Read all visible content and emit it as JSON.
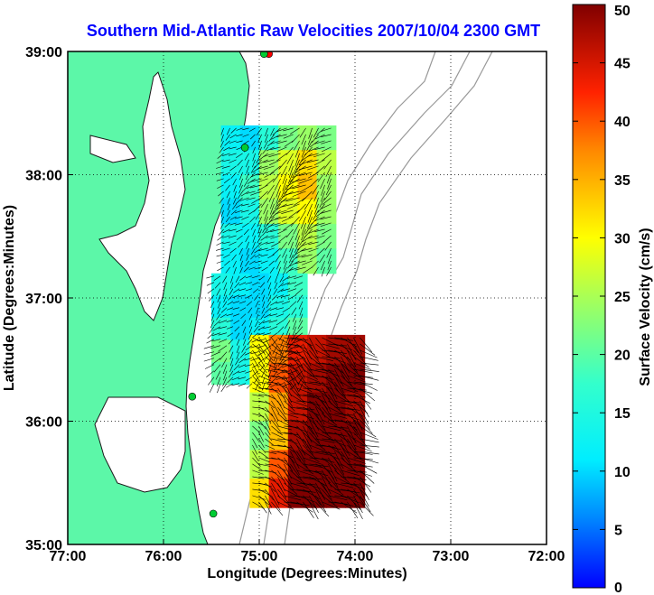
{
  "chart_data": {
    "type": "heatmap",
    "title": "Southern Mid-Atlantic Raw Velocities 2007/10/04 2300 GMT",
    "xlabel": "Longitude (Degrees:Minutes)",
    "ylabel": "Latitude (Degrees:Minutes)",
    "colorbar_label": "Surface Velocity (cm/s)",
    "x_tick_labels": [
      "77:00",
      "76:00",
      "75:00",
      "74:00",
      "73:00",
      "72:00"
    ],
    "x_tick_values": [
      -77,
      -76,
      -75,
      -74,
      -73,
      -72
    ],
    "y_tick_labels": [
      "35:00",
      "36:00",
      "37:00",
      "38:00",
      "39:00"
    ],
    "y_tick_values": [
      35,
      36,
      37,
      38,
      39
    ],
    "xlim": [
      -77,
      -72
    ],
    "ylim": [
      35,
      39
    ],
    "colorbar_ticks": [
      0,
      5,
      10,
      15,
      20,
      25,
      30,
      35,
      40,
      45,
      50
    ],
    "colorbar_range": [
      0,
      50
    ],
    "grid": "dotted",
    "colormap": "jet",
    "land_color": "#5cf7a8",
    "ocean_color": "#ffffff",
    "title_color": "#0000ff",
    "stations": [
      {
        "lon": -74.9,
        "lat": 38.98,
        "color": "#ff0000"
      },
      {
        "lon": -74.95,
        "lat": 38.98,
        "color": "#00cc33"
      },
      {
        "lon": -75.15,
        "lat": 38.22,
        "color": "#00cc33"
      },
      {
        "lon": -75.7,
        "lat": 36.2,
        "color": "#00cc33"
      },
      {
        "lon": -75.48,
        "lat": 35.25,
        "color": "#00cc33"
      }
    ],
    "regions": [
      {
        "name": "north",
        "lon": [
          -75.4,
          -74.2
        ],
        "lat": [
          37.2,
          38.4
        ],
        "field": [
          [
            12,
            10,
            16,
            22,
            24,
            22
          ],
          [
            14,
            14,
            24,
            28,
            32,
            26
          ],
          [
            12,
            18,
            26,
            30,
            34,
            24
          ],
          [
            10,
            14,
            24,
            28,
            30,
            24
          ],
          [
            14,
            12,
            16,
            22,
            26,
            22
          ],
          [
            12,
            10,
            12,
            18,
            24,
            20
          ]
        ]
      },
      {
        "name": "middle",
        "lon": [
          -75.5,
          -74.5
        ],
        "lat": [
          36.3,
          37.2
        ],
        "field": [
          [
            14,
            12,
            10,
            12,
            18
          ],
          [
            12,
            10,
            10,
            14,
            16
          ],
          [
            16,
            10,
            12,
            16,
            20
          ],
          [
            22,
            14,
            14,
            20,
            16
          ],
          [
            20,
            14,
            12,
            14,
            16
          ]
        ]
      },
      {
        "name": "south",
        "lon": [
          -75.1,
          -73.9
        ],
        "lat": [
          35.3,
          36.7
        ],
        "field": [
          [
            30,
            38,
            44,
            46,
            48,
            48
          ],
          [
            30,
            40,
            46,
            48,
            50,
            50
          ],
          [
            26,
            36,
            46,
            50,
            50,
            48
          ],
          [
            22,
            34,
            48,
            50,
            50,
            50
          ],
          [
            26,
            40,
            50,
            50,
            50,
            50
          ],
          [
            32,
            44,
            50,
            50,
            50,
            50
          ]
        ]
      }
    ]
  }
}
